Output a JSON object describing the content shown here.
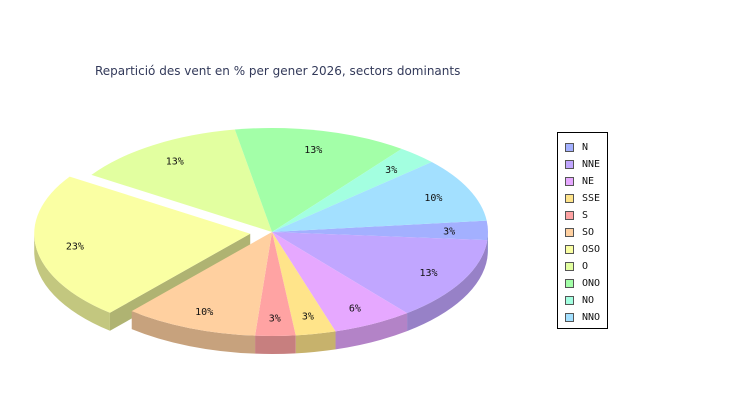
{
  "chart_data": {
    "type": "pie",
    "title": "Repartició des vent en % per gener 2026, sectors dominants",
    "categories": [
      "N",
      "NNE",
      "NE",
      "SSE",
      "S",
      "SO",
      "OSO",
      "O",
      "ONO",
      "NO",
      "NNO"
    ],
    "values": [
      3,
      13,
      6,
      3,
      3,
      10,
      23,
      13,
      13,
      3,
      10
    ],
    "value_labels": [
      "3%",
      "13%",
      "6%",
      "3%",
      "3%",
      "10%",
      "23%",
      "13%",
      "13%",
      "3%",
      "10%"
    ],
    "colors": [
      "#a3b0ff",
      "#c1a6ff",
      "#e6a8ff",
      "#ffe48a",
      "#ffa3a3",
      "#ffd0a0",
      "#faffa3",
      "#e2ffa0",
      "#a3ffa8",
      "#a3ffe0",
      "#a3e0ff"
    ],
    "exploded": [
      "OSO"
    ],
    "legend_position": "right",
    "three_d": true
  }
}
